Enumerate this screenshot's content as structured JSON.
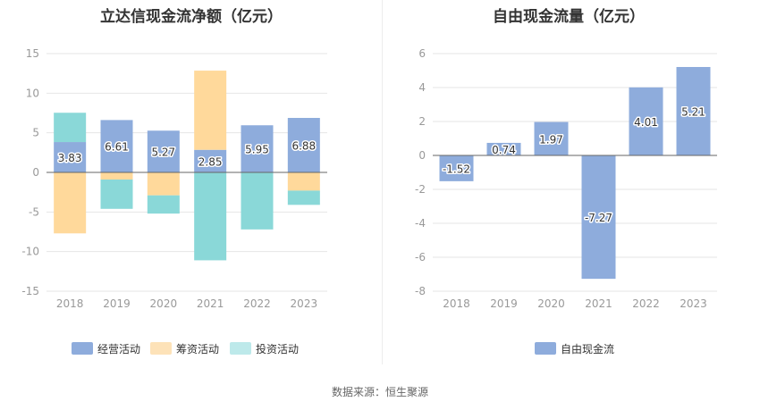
{
  "source_text": "数据来源：恒生聚源",
  "chart_data": [
    {
      "type": "bar",
      "stacked": true,
      "title": "立达信现金流净额（亿元）",
      "categories": [
        "2018",
        "2019",
        "2020",
        "2021",
        "2022",
        "2023"
      ],
      "ylim": [
        -15,
        15
      ],
      "yticks": [
        -15,
        -10,
        -5,
        0,
        5,
        10,
        15
      ],
      "series": [
        {
          "name": "经营活动",
          "color": "#8eacdc",
          "values": [
            3.83,
            6.61,
            5.27,
            2.85,
            5.95,
            6.88
          ],
          "labels": [
            "3.83",
            "6.61",
            "5.27",
            "2.85",
            "5.95",
            "6.88"
          ]
        },
        {
          "name": "筹资活动",
          "color": "#ffd99b",
          "values": [
            -7.7,
            -0.9,
            -2.9,
            10.0,
            0.0,
            -2.3
          ]
        },
        {
          "name": "投资活动",
          "color": "#8ad8d8",
          "values": [
            3.7,
            -3.7,
            -2.3,
            -11.1,
            -7.2,
            -1.8
          ]
        }
      ],
      "legend_colors": [
        "#8eacdc",
        "#fde2b8",
        "#bde9ea"
      ],
      "legend": "bottom",
      "grid": true
    },
    {
      "type": "bar",
      "title": "自由现金流量（亿元）",
      "categories": [
        "2018",
        "2019",
        "2020",
        "2021",
        "2022",
        "2023"
      ],
      "ylim": [
        -8,
        6
      ],
      "yticks": [
        -8,
        -6,
        -4,
        -2,
        0,
        2,
        4,
        6
      ],
      "series": [
        {
          "name": "自由现金流",
          "color": "#8eacdc",
          "values": [
            -1.52,
            0.74,
            1.97,
            -7.27,
            4.01,
            5.21
          ],
          "labels": [
            "-1.52",
            "0.74",
            "1.97",
            "-7.27",
            "4.01",
            "5.21"
          ]
        }
      ],
      "legend": "bottom",
      "grid": true
    }
  ]
}
